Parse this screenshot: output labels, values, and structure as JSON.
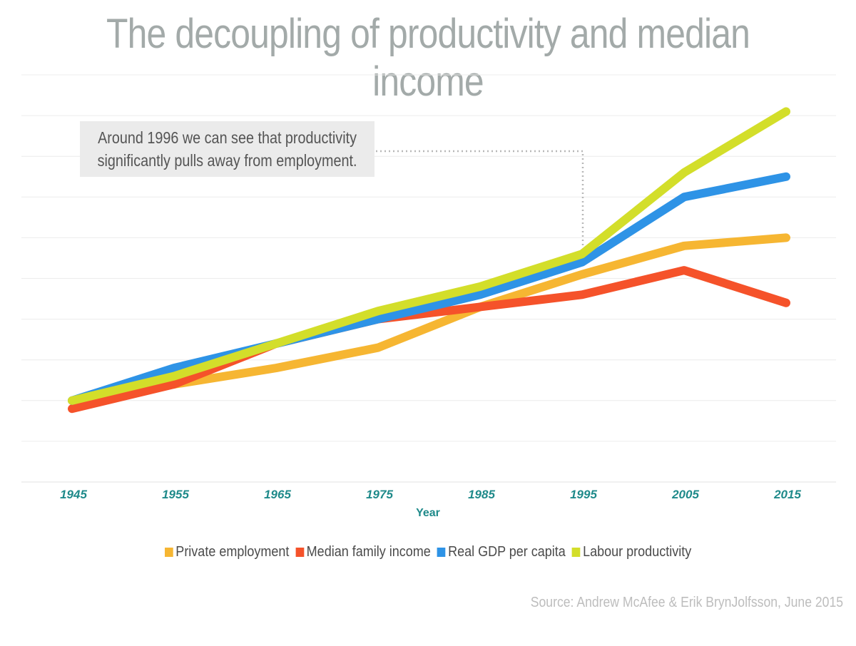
{
  "chart_data": {
    "type": "line",
    "title": "The decoupling of productivity and median income",
    "xlabel": "Year",
    "ylabel": "",
    "x": [
      1945,
      1955,
      1965,
      1975,
      1985,
      1995,
      2005,
      2015
    ],
    "x_tick_labels": [
      "1945",
      "1955",
      "1965",
      "1975",
      "1985",
      "1995",
      "2005",
      "2015"
    ],
    "ylim": [
      0,
      10
    ],
    "grid": true,
    "legend_position": "bottom",
    "series": [
      {
        "name": "Private employment",
        "color": "#f6b632",
        "values": [
          2.0,
          2.4,
          2.8,
          3.3,
          4.3,
          5.1,
          5.8,
          6.0
        ]
      },
      {
        "name": "Median family income",
        "color": "#f5522a",
        "values": [
          1.8,
          2.4,
          3.4,
          4.0,
          4.3,
          4.6,
          5.2,
          4.4
        ]
      },
      {
        "name": "Real GDP per capita",
        "color": "#2e93e6",
        "values": [
          2.0,
          2.8,
          3.4,
          4.0,
          4.6,
          5.4,
          7.0,
          7.5
        ]
      },
      {
        "name": "Labour productivity",
        "color": "#d3de2a",
        "values": [
          2.0,
          2.6,
          3.4,
          4.2,
          4.8,
          5.6,
          7.6,
          9.1
        ]
      }
    ],
    "annotation": {
      "line1": "Around 1996 we can see that productivity",
      "line2": "significantly pulls away from employment."
    }
  },
  "source": "Source: Andrew McAfee & Erik BrynJolfsson, June 2015"
}
